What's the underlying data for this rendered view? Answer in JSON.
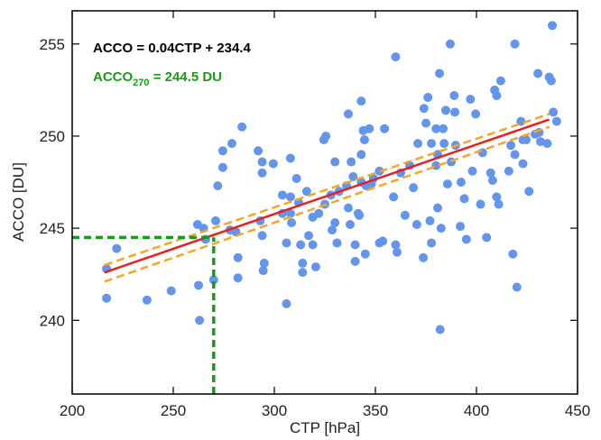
{
  "chart_data": {
    "type": "scatter",
    "xlabel": "CTP [hPa]",
    "ylabel": "ACCO [DU]",
    "color": "#6495ed",
    "xlim": [
      200,
      450
    ],
    "ylim": [
      236,
      256.8
    ],
    "xticks": [
      200,
      250,
      300,
      350,
      400,
      450
    ],
    "yticks": [
      240,
      245,
      250,
      255
    ],
    "x": [
      217,
      217,
      222,
      237,
      249,
      262.5,
      263,
      262,
      265,
      266,
      270,
      271,
      272,
      274.5,
      274.5,
      279,
      284,
      281,
      282,
      282,
      278,
      292,
      294,
      294,
      293,
      294,
      295,
      294.5,
      299.5,
      304,
      304,
      306,
      306,
      308,
      308,
      308,
      308.5,
      311,
      312,
      313,
      314,
      314,
      316,
      317,
      319,
      319,
      320.5,
      322,
      324.5,
      325.5,
      325,
      328,
      328.6,
      330,
      330,
      331,
      332,
      335.7,
      336.6,
      336.6,
      337.5,
      338,
      339,
      340,
      340,
      341.5,
      342,
      343,
      343,
      343,
      344,
      344.6,
      345,
      345.5,
      347,
      348,
      349,
      352,
      352,
      353.6,
      354.5,
      359,
      360,
      360,
      360.7,
      362.5,
      364.7,
      367,
      368.8,
      370.5,
      371,
      373.7,
      374,
      375,
      376,
      377,
      377.7,
      377.7,
      380,
      380,
      380.8,
      380.8,
      381.7,
      382,
      382.5,
      383.5,
      384,
      384.8,
      385.7,
      387,
      387.5,
      389,
      389.3,
      389.7,
      392,
      392.4,
      394,
      395,
      397,
      398,
      399.6,
      402,
      403,
      405,
      407,
      408,
      409,
      410,
      410,
      411,
      412,
      416,
      417,
      418,
      419,
      420,
      422,
      423,
      423,
      424.6,
      426,
      429,
      430.4,
      431,
      431.7,
      435,
      436,
      437,
      437.5,
      438,
      439.7,
      419
    ],
    "values": [
      242.8,
      241.2,
      243.9,
      241.1,
      241.6,
      241.9,
      240.0,
      245.2,
      245.0,
      244.4,
      242.2,
      245.4,
      247.3,
      248.3,
      249.2,
      249.6,
      250.5,
      244.8,
      243.4,
      242.3,
      244.9,
      249.2,
      248.6,
      248.0,
      245.4,
      244.6,
      243.1,
      242.7,
      248.5,
      245.8,
      246.8,
      244.2,
      240.9,
      248.8,
      246.7,
      245.8,
      245.3,
      247.7,
      246.4,
      244.1,
      242.6,
      243.1,
      247.0,
      244.6,
      245.6,
      244.1,
      242.9,
      245.8,
      249.8,
      250.0,
      246.3,
      246.8,
      244.9,
      245.3,
      248.6,
      244.2,
      247.0,
      247.3,
      251.2,
      246.1,
      245.2,
      248.6,
      247.8,
      243.2,
      244.1,
      245.8,
      245.7,
      247.5,
      249.0,
      251.9,
      250.3,
      249.8,
      243.6,
      247.3,
      250.4,
      247.4,
      247.7,
      248.1,
      244.2,
      244.3,
      250.4,
      246.7,
      254.3,
      244.1,
      243.7,
      248.0,
      245.7,
      248.4,
      247.2,
      245.2,
      249.6,
      243.4,
      251.5,
      250.7,
      252.1,
      245.4,
      244.2,
      249.6,
      248.4,
      250.4,
      249.0,
      246.1,
      253.4,
      239.5,
      245.0,
      250.4,
      249.6,
      251.4,
      247.4,
      255.0,
      248.6,
      252.2,
      251.3,
      249.5,
      245.1,
      247.5,
      246.6,
      244.4,
      252.0,
      248.1,
      251.2,
      246.3,
      249.1,
      244.5,
      248.0,
      247.6,
      252.5,
      252.2,
      246.7,
      246.3,
      253.0,
      248.1,
      249.5,
      243.6,
      255.0,
      241.8,
      250.8,
      248.5,
      249.8,
      249.8,
      247.0,
      250.1,
      253.4,
      250.2,
      249.7,
      249.6,
      253.2,
      253.0,
      256.0,
      251.3,
      250.8,
      249.0
    ],
    "fit": {
      "x": [
        216,
        436
      ],
      "values": [
        242.6,
        250.9
      ],
      "color": "#e8201e"
    },
    "bands": [
      {
        "x": [
          216,
          436
        ],
        "values": [
          243.0,
          251.2
        ],
        "color": "#f5a623"
      },
      {
        "x": [
          216,
          436
        ],
        "values": [
          242.1,
          250.5
        ],
        "color": "#f5a623"
      }
    ],
    "reference": {
      "x": 270,
      "y": 244.5,
      "color": "#1a9a1a"
    },
    "annotations": [
      {
        "parts": [
          "ACCO = 0.04CTP + 234.4"
        ],
        "color": "#000000"
      },
      {
        "parts": [
          "ACCO",
          "270",
          " = 244.5 DU"
        ],
        "color": "#1a9a1a"
      }
    ]
  }
}
